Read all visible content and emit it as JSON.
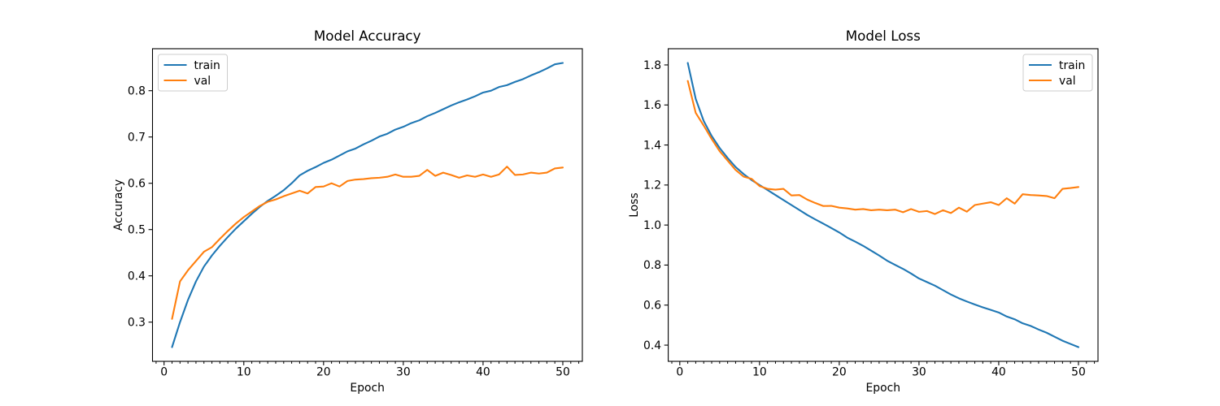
{
  "figure": {
    "background": "#ffffff",
    "text_color": "#000000",
    "spine_color": "#000000",
    "legend_border_color": "#cccccc",
    "legend_fill_color": "#ffffff"
  },
  "chart_data": [
    {
      "type": "line",
      "title": "Model Accuracy",
      "xlabel": "Epoch",
      "ylabel": "Accuracy",
      "legend_position": "upper-left",
      "grid": false,
      "xlim": [
        -1.45,
        52.45
      ],
      "ylim": [
        0.2153,
        0.8907
      ],
      "xticks": [
        0,
        10,
        20,
        30,
        40,
        50
      ],
      "xtick_labels": [
        "0",
        "10",
        "20",
        "30",
        "40",
        "50"
      ],
      "yticks": [
        0.3,
        0.4,
        0.5,
        0.6,
        0.7,
        0.8
      ],
      "ytick_labels": [
        "0.3",
        "0.4",
        "0.5",
        "0.6",
        "0.7",
        "0.8"
      ],
      "minor_x_step": 1,
      "x": [
        1,
        2,
        3,
        4,
        5,
        6,
        7,
        8,
        9,
        10,
        11,
        12,
        13,
        14,
        15,
        16,
        17,
        18,
        19,
        20,
        21,
        22,
        23,
        24,
        25,
        26,
        27,
        28,
        29,
        30,
        31,
        32,
        33,
        34,
        35,
        36,
        37,
        38,
        39,
        40,
        41,
        42,
        43,
        44,
        45,
        46,
        47,
        48,
        49,
        50
      ],
      "series": [
        {
          "name": "train",
          "color": "#1f77b4",
          "values": [
            0.246,
            0.3,
            0.348,
            0.388,
            0.42,
            0.444,
            0.465,
            0.484,
            0.502,
            0.518,
            0.534,
            0.549,
            0.562,
            0.573,
            0.585,
            0.6,
            0.617,
            0.627,
            0.635,
            0.644,
            0.651,
            0.66,
            0.669,
            0.675,
            0.684,
            0.692,
            0.701,
            0.707,
            0.716,
            0.722,
            0.73,
            0.736,
            0.745,
            0.752,
            0.76,
            0.768,
            0.775,
            0.781,
            0.788,
            0.796,
            0.8,
            0.808,
            0.812,
            0.819,
            0.825,
            0.833,
            0.84,
            0.848,
            0.857,
            0.86
          ]
        },
        {
          "name": "val",
          "color": "#ff7f0e",
          "values": [
            0.307,
            0.388,
            0.412,
            0.432,
            0.452,
            0.462,
            0.48,
            0.497,
            0.513,
            0.527,
            0.539,
            0.551,
            0.56,
            0.565,
            0.572,
            0.578,
            0.584,
            0.578,
            0.592,
            0.593,
            0.6,
            0.593,
            0.605,
            0.608,
            0.609,
            0.611,
            0.612,
            0.614,
            0.619,
            0.614,
            0.614,
            0.616,
            0.629,
            0.616,
            0.623,
            0.618,
            0.612,
            0.617,
            0.614,
            0.619,
            0.614,
            0.619,
            0.636,
            0.618,
            0.619,
            0.623,
            0.621,
            0.623,
            0.632,
            0.634
          ]
        }
      ]
    },
    {
      "type": "line",
      "title": "Model Loss",
      "xlabel": "Epoch",
      "ylabel": "Loss",
      "legend_position": "upper-right",
      "grid": false,
      "xlim": [
        -1.45,
        52.45
      ],
      "ylim": [
        0.319,
        1.881
      ],
      "xticks": [
        0,
        10,
        20,
        30,
        40,
        50
      ],
      "xtick_labels": [
        "0",
        "10",
        "20",
        "30",
        "40",
        "50"
      ],
      "yticks": [
        0.4,
        0.6,
        0.8,
        1.0,
        1.2,
        1.4,
        1.6,
        1.8
      ],
      "ytick_labels": [
        "0.4",
        "0.6",
        "0.8",
        "1.0",
        "1.2",
        "1.4",
        "1.6",
        "1.8"
      ],
      "minor_x_step": 1,
      "x": [
        1,
        2,
        3,
        4,
        5,
        6,
        7,
        8,
        9,
        10,
        11,
        12,
        13,
        14,
        15,
        16,
        17,
        18,
        19,
        20,
        21,
        22,
        23,
        24,
        25,
        26,
        27,
        28,
        29,
        30,
        31,
        32,
        33,
        34,
        35,
        36,
        37,
        38,
        39,
        40,
        41,
        42,
        43,
        44,
        45,
        46,
        47,
        48,
        49,
        50
      ],
      "series": [
        {
          "name": "train",
          "color": "#1f77b4",
          "values": [
            1.81,
            1.63,
            1.52,
            1.445,
            1.385,
            1.335,
            1.29,
            1.255,
            1.225,
            1.2,
            1.175,
            1.15,
            1.125,
            1.1,
            1.075,
            1.05,
            1.028,
            1.007,
            0.985,
            0.963,
            0.937,
            0.917,
            0.896,
            0.872,
            0.848,
            0.822,
            0.801,
            0.781,
            0.758,
            0.733,
            0.715,
            0.697,
            0.675,
            0.653,
            0.634,
            0.618,
            0.603,
            0.589,
            0.576,
            0.563,
            0.543,
            0.529,
            0.509,
            0.496,
            0.478,
            0.462,
            0.442,
            0.422,
            0.406,
            0.39
          ]
        },
        {
          "name": "val",
          "color": "#ff7f0e",
          "values": [
            1.72,
            1.56,
            1.497,
            1.43,
            1.369,
            1.322,
            1.275,
            1.242,
            1.231,
            1.195,
            1.181,
            1.177,
            1.181,
            1.148,
            1.15,
            1.127,
            1.11,
            1.095,
            1.096,
            1.087,
            1.083,
            1.077,
            1.08,
            1.074,
            1.077,
            1.074,
            1.077,
            1.064,
            1.08,
            1.066,
            1.07,
            1.055,
            1.074,
            1.06,
            1.087,
            1.067,
            1.1,
            1.107,
            1.114,
            1.1,
            1.134,
            1.107,
            1.154,
            1.15,
            1.148,
            1.145,
            1.134,
            1.181,
            1.185,
            1.19
          ]
        }
      ]
    }
  ]
}
